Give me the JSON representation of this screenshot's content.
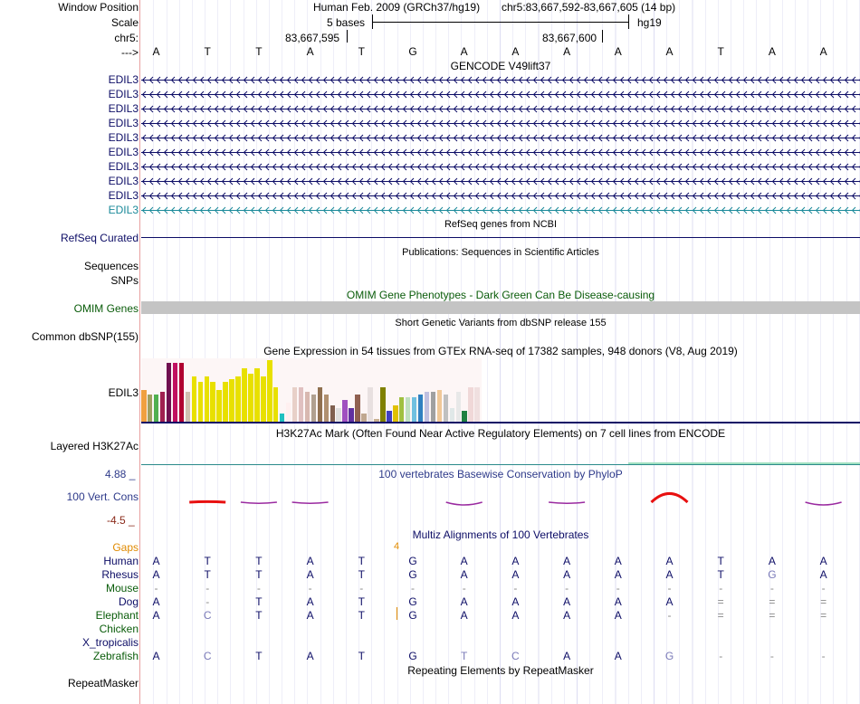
{
  "header": {
    "window_position_label": "Window Position",
    "assembly": "Human Feb. 2009 (GRCh37/hg19)",
    "position": "chr5:83,667,592-83,667,605 (14 bp)",
    "scale_label": "Scale",
    "scale_bases": "5 bases",
    "scale_db": "hg19",
    "chrom_label": "chr5:",
    "coord1": "83,667,595",
    "coord2": "83,667,600",
    "strand_label": "--->"
  },
  "ref_sequence": [
    "A",
    "T",
    "T",
    "A",
    "T",
    "G",
    "A",
    "A",
    "A",
    "A",
    "A",
    "T",
    "A",
    "A"
  ],
  "gencode": {
    "title": "GENCODE V49lift37",
    "transcripts": [
      "EDIL3",
      "EDIL3",
      "EDIL3",
      "EDIL3",
      "EDIL3",
      "EDIL3",
      "EDIL3",
      "EDIL3",
      "EDIL3",
      "EDIL3"
    ],
    "color": "#0d0d66",
    "last_color": "#1b8a9a"
  },
  "refseq": {
    "title": "RefSeq genes from NCBI",
    "label": "RefSeq Curated",
    "color": "#0d0d66"
  },
  "publications": {
    "title": "Publications: Sequences in Scientific Articles",
    "labels": [
      "Sequences",
      "SNPs"
    ]
  },
  "omim": {
    "title": "OMIM Gene Phenotypes - Dark Green Can Be Disease-causing",
    "label": "OMIM Genes",
    "color": "#0a5c0a"
  },
  "dbsnp": {
    "title": "Short Genetic Variants from dbSNP release 155",
    "label": "Common dbSNP(155)"
  },
  "gtex": {
    "title": "Gene Expression in 54 tissues from GTEx RNA-seq of 17382 samples, 948 donors (V8, Aug 2019)",
    "label": "EDIL3",
    "values": [
      12,
      10,
      10,
      11,
      22,
      22,
      22,
      11,
      17,
      15,
      17,
      15,
      12,
      15,
      16,
      17,
      20,
      18,
      20,
      17,
      23,
      13,
      3,
      7,
      13,
      13,
      11,
      10,
      13,
      10,
      6,
      5,
      8,
      5,
      10,
      3,
      13,
      1,
      13,
      4,
      6,
      9,
      9,
      9,
      10,
      11,
      11,
      12,
      10,
      5,
      11,
      4,
      13,
      13
    ],
    "colors": [
      "#f0a040",
      "#a0a060",
      "#50b050",
      "#a02050",
      "#701050",
      "#c01060",
      "#b00030",
      "#d0c0b0",
      "#e8e000",
      "#e8e000",
      "#e8e000",
      "#e8e000",
      "#e8e000",
      "#e8e000",
      "#e8e000",
      "#e8e000",
      "#e8e000",
      "#e8e000",
      "#e8e000",
      "#e8e000",
      "#e8e000",
      "#e8e000",
      "#20c0c0",
      "#fff0f0",
      "#e8d0c8",
      "#e0c0c0",
      "#d8b8b0",
      "#b0a090",
      "#907050",
      "#b09070",
      "#806050",
      "#e0e0e0",
      "#a050c0",
      "#6030a0",
      "#906050",
      "#c0a890",
      "#e8e0e0",
      "#c8b090",
      "#808000",
      "#4040c0",
      "#e0c000",
      "#a0c040",
      "#c0e0c0",
      "#70c0e0",
      "#3080c0",
      "#c0c0e0",
      "#a0a0a0",
      "#f0c898",
      "#c0c0c0",
      "#e0e8e8",
      "#e8e8e8",
      "#208040",
      "#f0d8d8",
      "#f0e0e0"
    ]
  },
  "h3k27ac": {
    "title": "H3K27Ac Mark (Often Found Near Active Regulatory Elements) on 7 cell lines from ENCODE",
    "label": "Layered H3K27Ac"
  },
  "phylop": {
    "title": "100 vertebrates Basewise Conservation by PhyloP",
    "label": "100 Vert. Cons",
    "max": "4.88 _",
    "min": "-4.5 _",
    "values": [
      0,
      0.2,
      -0.6,
      -0.6,
      0,
      0,
      -1.5,
      0,
      -0.6,
      0,
      3.2,
      0,
      0,
      -1.5
    ]
  },
  "multiz": {
    "title": "Multiz Alignments of 100 Vertebrates",
    "gaps_label": "Gaps",
    "gap_count": "4",
    "species": [
      {
        "name": "Human",
        "color": "#0d0d66",
        "seq": [
          "A",
          "T",
          "T",
          "A",
          "T",
          "G",
          "A",
          "A",
          "A",
          "A",
          "A",
          "T",
          "A",
          "A"
        ]
      },
      {
        "name": "Rhesus",
        "color": "#0d0d66",
        "seq": [
          "A",
          "T",
          "T",
          "A",
          "T",
          "G",
          "A",
          "A",
          "A",
          "A",
          "A",
          "T",
          "G",
          "A"
        ]
      },
      {
        "name": "Mouse",
        "color": "#0a5c0a",
        "seq": [
          "-",
          "-",
          "-",
          "-",
          "-",
          "-",
          "-",
          "-",
          "-",
          "-",
          "-",
          "-",
          "-",
          "-"
        ]
      },
      {
        "name": "Dog",
        "color": "#0d0d66",
        "seq": [
          "A",
          "-",
          "T",
          "A",
          "T",
          "G",
          "A",
          "A",
          "A",
          "A",
          "A",
          "=",
          "=",
          "="
        ]
      },
      {
        "name": "Elephant",
        "color": "#0a5c0a",
        "seq": [
          "A",
          "C",
          "T",
          "A",
          "T",
          "G",
          "A",
          "A",
          "A",
          "A",
          "-",
          "=",
          "=",
          "="
        ]
      },
      {
        "name": "Chicken",
        "color": "#0a5c0a",
        "seq": []
      },
      {
        "name": "X_tropicalis",
        "color": "#0d0d66",
        "seq": []
      },
      {
        "name": "Zebrafish",
        "color": "#0a5c0a",
        "seq": [
          "A",
          "C",
          "T",
          "A",
          "T",
          "G",
          "T",
          "C",
          "A",
          "A",
          "G",
          "-",
          "-",
          "-"
        ]
      }
    ]
  },
  "repeatmasker": {
    "title": "Repeating Elements by RepeatMasker",
    "label": "RepeatMasker"
  }
}
